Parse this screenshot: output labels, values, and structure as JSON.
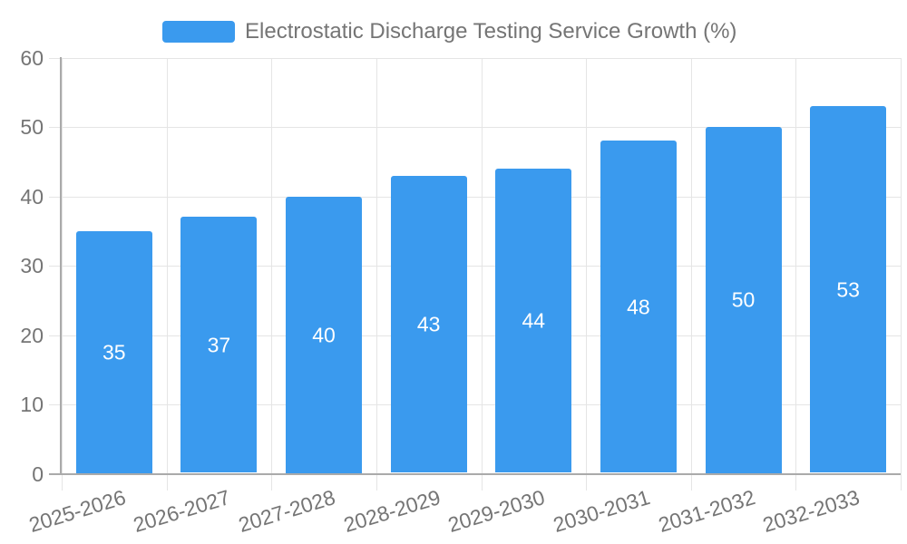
{
  "chart_data": {
    "type": "bar",
    "title": "Electrostatic Discharge Testing Service Growth (%)",
    "categories": [
      "2025-2026",
      "2026-2027",
      "2027-2028",
      "2028-2029",
      "2029-2030",
      "2030-2031",
      "2031-2032",
      "2032-2033"
    ],
    "values": [
      35,
      37,
      40,
      43,
      44,
      48,
      50,
      53
    ],
    "xlabel": "",
    "ylabel": "",
    "ylim": [
      0,
      60
    ],
    "ytick_step": 10,
    "ytick_labels": [
      "0",
      "10",
      "20",
      "30",
      "40",
      "50",
      "60"
    ],
    "grid": true,
    "legend_position": "top",
    "value_label_position": "inside-center"
  },
  "colors": {
    "accent": "#3a9aee",
    "grid": "#e5e5e5",
    "axis": "#aaaaaa",
    "text": "#757575",
    "value_text": "#ffffff",
    "background": "#ffffff"
  }
}
